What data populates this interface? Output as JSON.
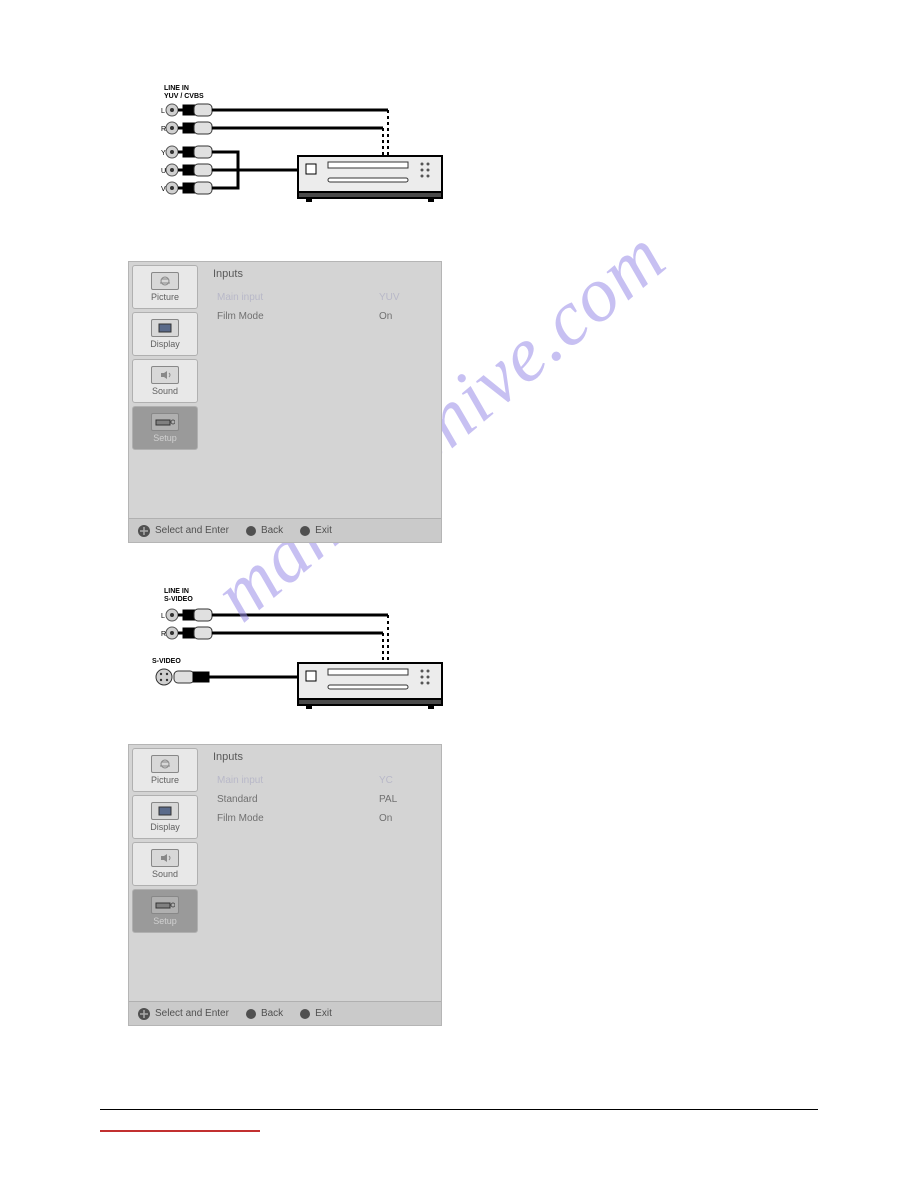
{
  "watermark_text": "manualshive.com",
  "diagram1": {
    "conn_label": "LINE IN\nYUV / CVBS",
    "port_letters": [
      "L",
      "R",
      "Y",
      "U",
      "V"
    ]
  },
  "diagram2": {
    "conn_label": "LINE IN\nS-VIDEO",
    "port_letters": [
      "L",
      "R"
    ],
    "svideo_label": "S-VIDEO"
  },
  "osd": {
    "tabs": [
      {
        "key": "picture",
        "label": "Picture"
      },
      {
        "key": "display",
        "label": "Display"
      },
      {
        "key": "sound",
        "label": "Sound"
      },
      {
        "key": "setup",
        "label": "Setup"
      }
    ],
    "active_tab": "setup",
    "pane_title": "Inputs",
    "footer": {
      "select": "Select and Enter",
      "back": "Back",
      "exit": "Exit"
    }
  },
  "osd1_rows": [
    {
      "label": "Main input",
      "value": "YUV",
      "selected": true
    },
    {
      "label": "Film Mode",
      "value": "On",
      "selected": false
    }
  ],
  "osd2_rows": [
    {
      "label": "Main input",
      "value": "YC",
      "selected": true
    },
    {
      "label": "Standard",
      "value": "PAL",
      "selected": false
    },
    {
      "label": "Film Mode",
      "value": "On",
      "selected": false
    }
  ],
  "colors": {
    "osd_bg": "#d4d4d4",
    "tab_bg": "#e8e8e8",
    "tab_active_bg": "#9a9a9a",
    "watermark": "#9a8ee8",
    "red_line": "#c23030"
  }
}
